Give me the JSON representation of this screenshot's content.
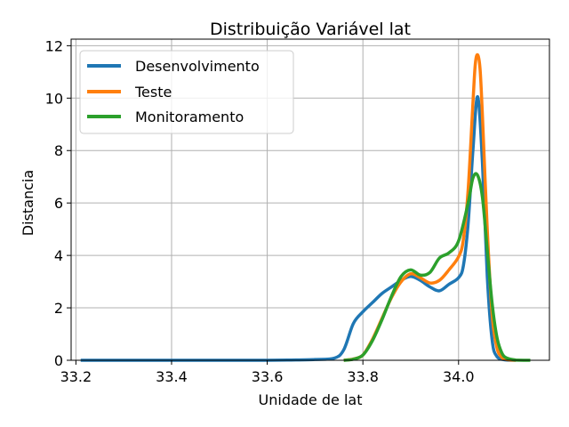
{
  "chart_data": {
    "type": "line",
    "title": "Distribuição Variável lat",
    "xlabel": "Unidade de lat",
    "ylabel": "Distancia",
    "xlim": [
      33.19,
      34.19
    ],
    "ylim": [
      0,
      12.25
    ],
    "xticks": [
      33.2,
      33.4,
      33.6,
      33.8,
      34.0
    ],
    "xtick_labels": [
      "33.2",
      "33.4",
      "33.6",
      "33.8",
      "34.0"
    ],
    "yticks": [
      0,
      2,
      4,
      6,
      8,
      10,
      12
    ],
    "ytick_labels": [
      "0",
      "2",
      "4",
      "6",
      "8",
      "10",
      "12"
    ],
    "grid": true,
    "legend_position": "top-left",
    "series": [
      {
        "name": "Desenvolvimento",
        "color": "#1f77b4",
        "x": [
          33.21,
          33.3,
          33.4,
          33.5,
          33.6,
          33.65,
          33.7,
          33.74,
          33.76,
          33.78,
          33.8,
          33.82,
          33.84,
          33.86,
          33.88,
          33.9,
          33.92,
          33.94,
          33.96,
          33.98,
          34.0,
          34.01,
          34.02,
          34.03,
          34.04,
          34.05,
          34.06,
          34.07,
          34.08,
          34.1,
          34.12
        ],
        "y": [
          0,
          0,
          0,
          0,
          0,
          0.01,
          0.03,
          0.08,
          0.4,
          1.4,
          1.85,
          2.2,
          2.55,
          2.8,
          3.05,
          3.2,
          3.05,
          2.8,
          2.65,
          2.9,
          3.15,
          3.6,
          5.2,
          8.0,
          10.05,
          7.5,
          3.2,
          0.8,
          0.15,
          0.01,
          0
        ]
      },
      {
        "name": "Teste",
        "color": "#ff7f0e",
        "x": [
          33.76,
          33.78,
          33.8,
          33.82,
          33.84,
          33.86,
          33.88,
          33.9,
          33.92,
          33.94,
          33.96,
          33.98,
          34.0,
          34.01,
          34.02,
          34.03,
          34.035,
          34.04,
          34.045,
          34.05,
          34.06,
          34.07,
          34.08,
          34.09,
          34.1,
          34.12
        ],
        "y": [
          0,
          0.05,
          0.2,
          0.8,
          1.6,
          2.4,
          3.0,
          3.3,
          3.15,
          2.95,
          3.05,
          3.45,
          3.95,
          4.6,
          6.5,
          9.8,
          11.3,
          11.65,
          11.1,
          9.3,
          5.0,
          1.8,
          0.5,
          0.12,
          0.03,
          0
        ]
      },
      {
        "name": "Monitoramento",
        "color": "#2ca02c",
        "x": [
          33.76,
          33.78,
          33.8,
          33.82,
          33.84,
          33.86,
          33.88,
          33.9,
          33.92,
          33.94,
          33.96,
          33.98,
          34.0,
          34.02,
          34.03,
          34.04,
          34.05,
          34.06,
          34.07,
          34.08,
          34.09,
          34.1,
          34.12,
          34.15
        ],
        "y": [
          0,
          0.04,
          0.2,
          0.75,
          1.55,
          2.45,
          3.2,
          3.45,
          3.25,
          3.35,
          3.9,
          4.1,
          4.55,
          6.0,
          6.95,
          7.05,
          6.2,
          4.2,
          2.2,
          0.9,
          0.3,
          0.09,
          0.01,
          0
        ]
      }
    ]
  }
}
